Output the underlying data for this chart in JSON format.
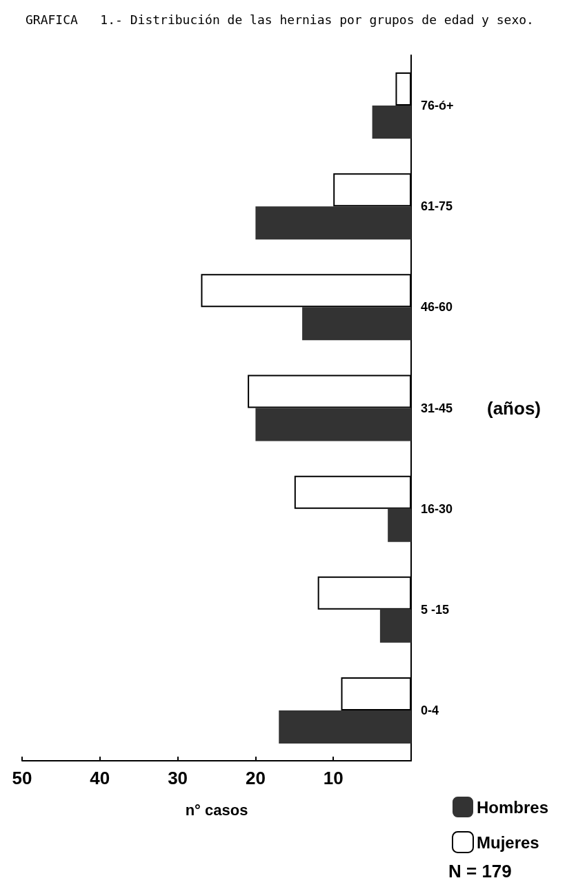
{
  "chart_data": {
    "type": "bar",
    "orientation": "horizontal",
    "title": "GRAFICA   1.- Distribución de las hernias por grupos de edad y sexo.",
    "ylabel": "(años)",
    "xlabel": "n° casos",
    "categories": [
      "76-ó+",
      "61-75",
      "46-60",
      "31-45",
      "16-30",
      "5 -15",
      "0-4"
    ],
    "series": [
      {
        "name": "Hombres",
        "color": "#333333",
        "values": [
          5,
          20,
          14,
          20,
          3,
          4,
          17
        ]
      },
      {
        "name": "Mujeres",
        "color": "#ffffff",
        "values": [
          2,
          10,
          27,
          21,
          15,
          12,
          9
        ]
      }
    ],
    "xlim": [
      50,
      0
    ],
    "xticks": [
      50,
      40,
      30,
      20,
      10
    ],
    "grid": false,
    "legend": "bottom right",
    "annotations": [
      "N = 179"
    ]
  }
}
